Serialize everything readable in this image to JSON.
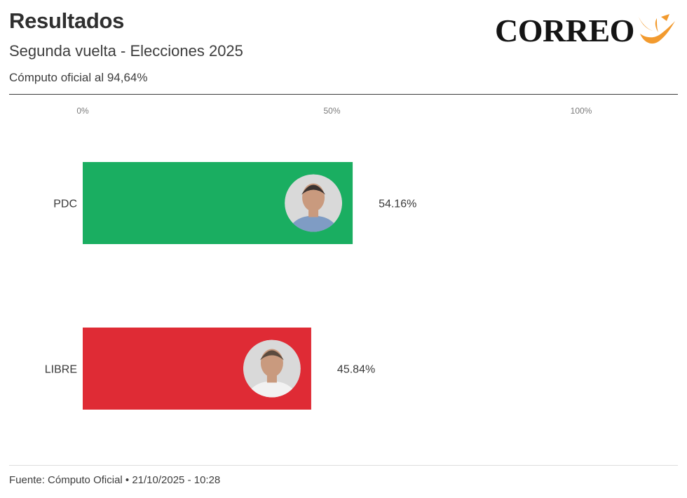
{
  "header": {
    "title": "Resultados",
    "subtitle": "Segunda vuelta - Elecciones 2025",
    "note": "Cómputo oficial al 94,64%"
  },
  "logo": {
    "text": "CORREO"
  },
  "footer": {
    "text": "Fuente: Cómputo Oficial • 21/10/2025 - 10:28"
  },
  "chart_data": {
    "type": "bar",
    "orientation": "horizontal",
    "categories": [
      "PDC",
      "LIBRE"
    ],
    "values": [
      54.16,
      45.84
    ],
    "value_labels": [
      "54.16%",
      "45.84%"
    ],
    "colors": [
      "#1aae61",
      "#df2b35"
    ],
    "xlim": [
      0,
      100
    ],
    "x_ticks": [
      "0%",
      "50%",
      "100%"
    ],
    "grid": false,
    "legend": "none",
    "candidate_photos": [
      "person-photo",
      "person-photo"
    ]
  },
  "colors": {
    "accent_orange": "#f29a2e",
    "rule": "#3a3a3a"
  }
}
